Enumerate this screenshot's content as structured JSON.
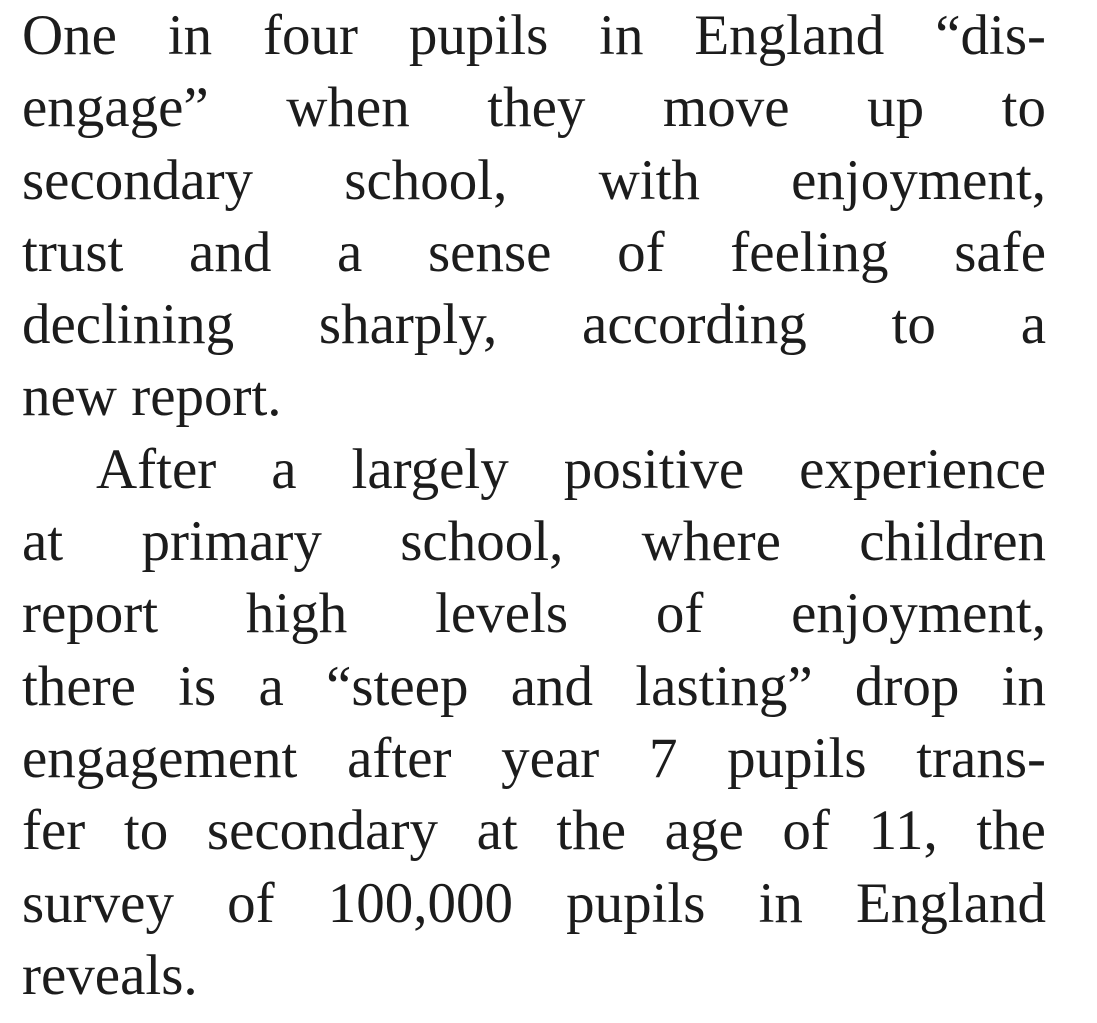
{
  "article": {
    "paragraphs": [
      {
        "lines": [
          "One in four pupils in England “dis-",
          "engage” when they move up to",
          "secondary school, with enjoyment,",
          "trust and a sense of feeling safe",
          "declining sharply, according to a",
          "new report."
        ]
      },
      {
        "lines": [
          "After a largely positive experience",
          "at primary school, where children",
          "report high levels of enjoyment,",
          "there is a “steep and lasting” drop in",
          "engagement after year 7 pupils trans-",
          "fer to secondary at the age of 11, the",
          "survey of 100,000 pupils in England",
          "reveals."
        ]
      }
    ]
  }
}
